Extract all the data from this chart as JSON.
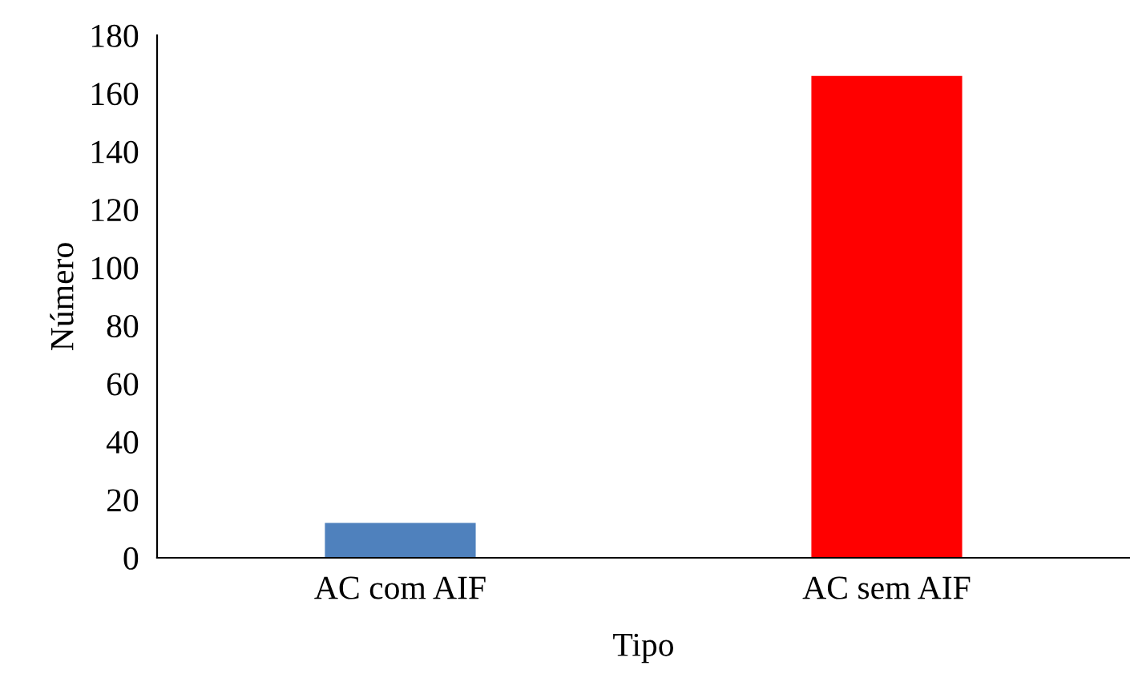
{
  "chart_data": {
    "type": "bar",
    "xlabel": "Tipo",
    "ylabel": "Número",
    "categories": [
      "AC com AIF",
      "AC sem AIF"
    ],
    "values": [
      12,
      166
    ],
    "colors": [
      "#4f81bd",
      "#ff0000"
    ],
    "ylim": [
      0,
      180
    ],
    "yticks": [
      0,
      20,
      40,
      60,
      80,
      100,
      120,
      140,
      160,
      180
    ],
    "grid": false,
    "legend": false
  }
}
